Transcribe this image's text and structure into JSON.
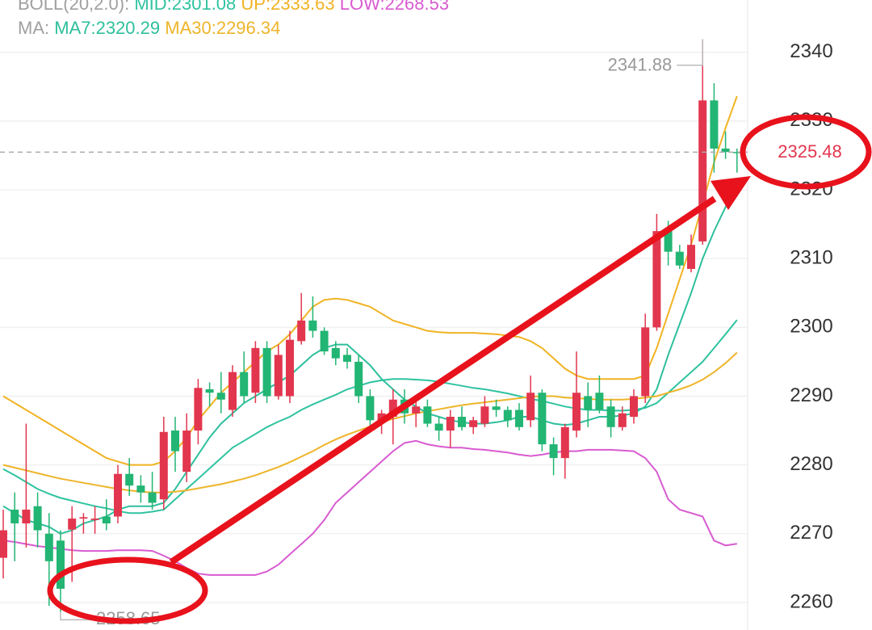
{
  "chart_data": {
    "type": "candlestick",
    "up_color": "#e2364e",
    "down_color": "#22b573",
    "ylim": [
      2256,
      2347.6
    ],
    "yticks": [
      2260,
      2270,
      2280,
      2290,
      2300,
      2310,
      2320,
      2330,
      2340
    ],
    "grid": true,
    "open": [
      2266.5,
      2273.5,
      2271.5,
      2274,
      2270,
      2269,
      2270.6,
      2272.2,
      2272,
      2272.5,
      2272.5,
      2278.7,
      2277,
      2276,
      2275,
      2285,
      2279,
      2285,
      2291,
      2290.5,
      2288,
      2293.5,
      2290.5,
      2297,
      2290,
      2290,
      2298,
      2301,
      2299.5,
      2297,
      2296,
      2295,
      2290,
      2286.5,
      2287,
      2289.5,
      2287.5,
      2288.5,
      2286,
      2285,
      2287,
      2285.5,
      2286,
      2288.5,
      2288,
      2288,
      2286.5,
      2290.5,
      2283,
      2281,
      2285,
      2290,
      2290.5,
      2288.5,
      2285.5,
      2287,
      2290,
      2300,
      2314,
      2311,
      2308.5,
      2312.5,
      2333,
      2326,
      2325.5
    ],
    "high": [
      2273.5,
      2276,
      2286,
      2276,
      2273,
      2270.5,
      2274,
      2273,
      2274,
      2275,
      2280,
      2281,
      2278.5,
      2279,
      2287,
      2287,
      2287.5,
      2292.5,
      2292,
      2293.5,
      2294.5,
      2296.5,
      2298,
      2298,
      2297.5,
      2299.5,
      2305,
      2304.5,
      2300,
      2298,
      2297,
      2296,
      2291,
      2288,
      2291,
      2291,
      2289.5,
      2289.5,
      2287,
      2288,
      2288.5,
      2287,
      2290,
      2289.5,
      2288.5,
      2289,
      2293,
      2291,
      2284,
      2286,
      2296.5,
      2292,
      2293,
      2289.5,
      2288.5,
      2291,
      2302,
      2316.5,
      2315.5,
      2312,
      2313.5,
      2341.88,
      2335.5,
      2328.5,
      2326
    ],
    "low": [
      2263.5,
      2266,
      2268,
      2268,
      2259.5,
      2258.65,
      2263,
      2270,
      2270,
      2270.5,
      2271.5,
      2275.5,
      2274.5,
      2273.5,
      2273.5,
      2279,
      2277.5,
      2283,
      2288.5,
      2287.5,
      2287,
      2289,
      2289,
      2289,
      2289.5,
      2289,
      2297.5,
      2298.5,
      2296,
      2294.5,
      2294,
      2289,
      2285.5,
      2284.5,
      2283,
      2286,
      2285.5,
      2285.5,
      2283.5,
      2282.5,
      2285,
      2284.5,
      2285.5,
      2287,
      2285.5,
      2285,
      2285.5,
      2282,
      2278.5,
      2278,
      2284,
      2285.5,
      2287.5,
      2284,
      2285,
      2286,
      2289,
      2299.5,
      2309,
      2308.5,
      2308,
      2312,
      2322.5,
      2324.5,
      2322.5
    ],
    "close": [
      2270.5,
      2271.5,
      2273.5,
      2270.5,
      2266,
      2262,
      2272.2,
      2272.4,
      2272.2,
      2271.5,
      2278.7,
      2277,
      2276,
      2274.5,
      2284.8,
      2282,
      2285,
      2291.2,
      2290.5,
      2289.5,
      2293.5,
      2290,
      2297,
      2290,
      2296,
      2298.2,
      2301,
      2299.5,
      2296.5,
      2295.5,
      2295,
      2290,
      2286.5,
      2287.5,
      2289.5,
      2287.5,
      2288.5,
      2286,
      2285,
      2287,
      2285.5,
      2286.5,
      2288.5,
      2288,
      2286.5,
      2285.5,
      2290.5,
      2283,
      2281,
      2285.5,
      2290.5,
      2288,
      2288,
      2285.5,
      2287.5,
      2290,
      2300,
      2314,
      2311,
      2309,
      2312,
      2333,
      2326,
      2325.5,
      2325.48
    ],
    "groups": [
      {
        "label": "BOLL(20,2.0):",
        "series": [
          {
            "name": "MID:2301.08",
            "color": "#2fc3a0",
            "values": [
              2279.4,
              2278.5,
              2277.5,
              2276.5,
              2275.8,
              2275.2,
              2274.8,
              2274.4,
              2274,
              2273.7,
              2273.3,
              2273,
              2273,
              2273.2,
              2273.5,
              2275,
              2276.5,
              2278,
              2279.5,
              2281,
              2282.5,
              2283.5,
              2284.5,
              2285.5,
              2286.3,
              2287,
              2288,
              2288.8,
              2289.5,
              2290.2,
              2291,
              2291.5,
              2292,
              2292.3,
              2292.5,
              2292.5,
              2292.4,
              2292.3,
              2292.1,
              2291.8,
              2291.5,
              2291.2,
              2291,
              2290.7,
              2290.4,
              2290,
              2289.6,
              2289.3,
              2288.9,
              2288.5,
              2288.2,
              2288,
              2288,
              2287.9,
              2287.9,
              2288,
              2288.3,
              2289,
              2290.5,
              2292,
              2293.5,
              2295,
              2297,
              2299,
              2301.08
            ]
          },
          {
            "name": "UP:2333.63",
            "color": "#f0b323",
            "values": [
              2290,
              2289,
              2288,
              2287,
              2286,
              2285,
              2284,
              2283,
              2282,
              2281,
              2280.5,
              2280,
              2280,
              2280,
              2280.5,
              2282,
              2284,
              2286.5,
              2288.5,
              2290.5,
              2292,
              2293.5,
              2295,
              2296.5,
              2297.5,
              2299,
              2301,
              2303,
              2304,
              2304.2,
              2304,
              2303.5,
              2303,
              2302,
              2301,
              2300.5,
              2300,
              2299.5,
              2299.3,
              2299.2,
              2299.2,
              2299.2,
              2299.1,
              2299,
              2298.8,
              2298.6,
              2298,
              2297,
              2295.5,
              2294,
              2293,
              2292.5,
              2292.5,
              2292.5,
              2292.5,
              2292.5,
              2293,
              2297,
              2302,
              2307,
              2312,
              2318,
              2324,
              2329,
              2333.63
            ]
          },
          {
            "name": "LOW:2268.53",
            "color": "#d85bd0",
            "values": [
              2269,
              2268.8,
              2268.5,
              2268.2,
              2268,
              2267.8,
              2267.6,
              2267.5,
              2267.5,
              2267.5,
              2267.6,
              2267.6,
              2267.6,
              2267.5,
              2266.8,
              2266,
              2265,
              2264.2,
              2264,
              2264,
              2264,
              2264,
              2264,
              2264.5,
              2265.5,
              2267,
              2268.5,
              2270,
              2272,
              2274.5,
              2276,
              2277.5,
              2279,
              2280.5,
              2282,
              2283.2,
              2283.5,
              2283,
              2282.7,
              2282.5,
              2282.5,
              2282.3,
              2282.2,
              2282,
              2281.8,
              2281.5,
              2281.3,
              2281.5,
              2281.8,
              2282,
              2282,
              2282.2,
              2282.2,
              2282.2,
              2282.1,
              2282,
              2281,
              2279,
              2275,
              2273.5,
              2273,
              2272.5,
              2269,
              2268.3,
              2268.53
            ]
          }
        ]
      },
      {
        "label": "MA:",
        "series": [
          {
            "name": "MA7:2320.29",
            "color": "#2ebf9c",
            "values": [
              2274,
              2273,
              2272,
              2271.5,
              2271,
              2270,
              2270.5,
              2271.5,
              2272,
              2272.5,
              2273.5,
              2274,
              2274,
              2274,
              2274.5,
              2276.5,
              2279,
              2281.5,
              2284,
              2286,
              2287.5,
              2289,
              2290,
              2291,
              2292,
              2293,
              2294.5,
              2296,
              2297,
              2297.5,
              2297.5,
              2296,
              2294.5,
              2292.5,
              2291,
              2289.5,
              2288.5,
              2287.5,
              2287,
              2286.5,
              2286.2,
              2286,
              2286,
              2286.2,
              2286.5,
              2287,
              2287,
              2286.5,
              2286,
              2285.8,
              2286,
              2286.5,
              2287,
              2287,
              2287.2,
              2287.5,
              2288.5,
              2291,
              2296,
              2300.5,
              2305,
              2310,
              2314,
              2317.5,
              2320.29
            ]
          },
          {
            "name": "MA30:2296.34",
            "color": "#edb52a",
            "values": [
              2280,
              2279.6,
              2279.2,
              2278.8,
              2278.4,
              2278,
              2277.7,
              2277.4,
              2277.1,
              2276.8,
              2276.5,
              2276.3,
              2276.1,
              2276,
              2276,
              2276.1,
              2276.3,
              2276.6,
              2276.9,
              2277.2,
              2277.6,
              2278,
              2278.5,
              2279.1,
              2279.7,
              2280.4,
              2281.2,
              2282,
              2282.9,
              2283.7,
              2284.4,
              2285,
              2285.6,
              2286.2,
              2286.7,
              2287.1,
              2287.5,
              2287.8,
              2288.1,
              2288.4,
              2288.7,
              2288.9,
              2289.1,
              2289.3,
              2289.5,
              2289.7,
              2289.9,
              2290,
              2290,
              2289.8,
              2289.7,
              2289.6,
              2289.5,
              2289.5,
              2289.5,
              2289.6,
              2289.8,
              2290,
              2290.5,
              2291,
              2291.6,
              2292.4,
              2293.5,
              2294.8,
              2296.34
            ]
          }
        ]
      }
    ],
    "high_label": 2341.88,
    "low_label": 2258.65,
    "last_price": 2325.48,
    "last_price_color": "#e2364e"
  }
}
